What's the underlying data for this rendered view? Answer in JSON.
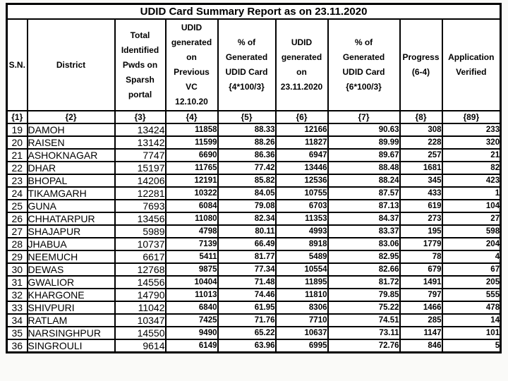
{
  "report": {
    "title": "UDID Card Summary Report as on 23.11.2020",
    "columns": [
      {
        "key": "sn",
        "label": "S.N.",
        "num": "{1}"
      },
      {
        "key": "district",
        "label": "District",
        "num": "{2}"
      },
      {
        "key": "total_identified",
        "label": "Total\nIdentified\nPwds on\nSparsh\nportal",
        "num": "{3}"
      },
      {
        "key": "udid_previous",
        "label": "UDID\ngenerated\non\nPrevious\nVC\n12.10.20",
        "num": "{4}"
      },
      {
        "key": "pct_previous",
        "label": "% of\nGenerated\nUDID Card\n{4*100/3}",
        "num": "{5}"
      },
      {
        "key": "udid_current",
        "label": "UDID\ngenerated\non\n23.11.2020",
        "num": "{6}"
      },
      {
        "key": "pct_current",
        "label": "% of\nGenerated\nUDID Card\n{6*100/3}",
        "num": "{7}"
      },
      {
        "key": "progress",
        "label": "Progress\n(6-4)",
        "num": "{8}"
      },
      {
        "key": "app_verified",
        "label": "Application\nVerified",
        "num": "{89}"
      }
    ],
    "rows": [
      [
        19,
        "DAMOH",
        13424,
        11858,
        "88.33",
        12166,
        "90.63",
        308,
        233
      ],
      [
        20,
        "RAISEN",
        13142,
        11599,
        "88.26",
        11827,
        "89.99",
        228,
        320
      ],
      [
        21,
        "ASHOKNAGAR",
        7747,
        6690,
        "86.36",
        6947,
        "89.67",
        257,
        21
      ],
      [
        22,
        "DHAR",
        15197,
        11765,
        "77.42",
        13446,
        "88.48",
        1681,
        82
      ],
      [
        23,
        "BHOPAL",
        14206,
        12191,
        "85.82",
        12536,
        "88.24",
        345,
        423
      ],
      [
        24,
        "TIKAMGARH",
        12281,
        10322,
        "84.05",
        10755,
        "87.57",
        433,
        1
      ],
      [
        25,
        "GUNA",
        7693,
        6084,
        "79.08",
        6703,
        "87.13",
        619,
        104
      ],
      [
        26,
        "CHHATARPUR",
        13456,
        11080,
        "82.34",
        11353,
        "84.37",
        273,
        27
      ],
      [
        27,
        "SHAJAPUR",
        5989,
        4798,
        "80.11",
        4993,
        "83.37",
        195,
        598
      ],
      [
        28,
        "JHABUA",
        10737,
        7139,
        "66.49",
        8918,
        "83.06",
        1779,
        204
      ],
      [
        29,
        "NEEMUCH",
        6617,
        5411,
        "81.77",
        5489,
        "82.95",
        78,
        4
      ],
      [
        30,
        "DEWAS",
        12768,
        9875,
        "77.34",
        10554,
        "82.66",
        679,
        67
      ],
      [
        31,
        "GWALIOR",
        14556,
        10404,
        "71.48",
        11895,
        "81.72",
        1491,
        205
      ],
      [
        32,
        "KHARGONE",
        14790,
        11013,
        "74.46",
        11810,
        "79.85",
        797,
        555
      ],
      [
        33,
        "SHIVPURI",
        11042,
        6840,
        "61.95",
        8306,
        "75.22",
        1466,
        478
      ],
      [
        34,
        "RATLAM",
        10347,
        7425,
        "71.76",
        7710,
        "74.51",
        285,
        14
      ],
      [
        35,
        "NARSINGHPUR",
        14550,
        9490,
        "65.22",
        10637,
        "73.11",
        1147,
        101
      ],
      [
        36,
        "SINGROULI",
        9614,
        6149,
        "63.96",
        6995,
        "72.76",
        846,
        5
      ]
    ]
  }
}
